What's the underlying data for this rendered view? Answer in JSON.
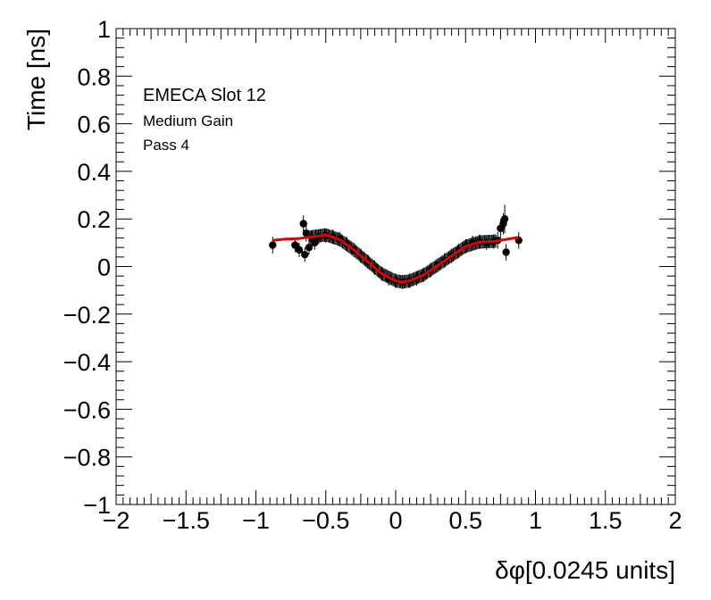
{
  "chart_data": {
    "type": "scatter",
    "title": "",
    "xlabel": "δφ[0.0245 units]",
    "ylabel": "Time [ns]",
    "xlim": [
      -2,
      2
    ],
    "ylim": [
      -1,
      1
    ],
    "x_ticks": [
      -2,
      -1.5,
      -1,
      -0.5,
      0,
      0.5,
      1,
      1.5,
      2
    ],
    "x_tick_labels": [
      "−2",
      "−1.5",
      "−1",
      "−0.5",
      "0",
      "0.5",
      "1",
      "1.5",
      "2"
    ],
    "y_ticks": [
      -1,
      -0.8,
      -0.6,
      -0.4,
      -0.2,
      0,
      0.2,
      0.4,
      0.6,
      0.8,
      1
    ],
    "y_tick_labels": [
      "−1",
      "−0.8",
      "−0.6",
      "−0.4",
      "−0.2",
      "0",
      "0.2",
      "0.4",
      "0.6",
      "0.8",
      "1"
    ],
    "grid": false,
    "annotations": [
      "EMECA Slot 12",
      "Medium Gain",
      "Pass 4"
    ],
    "series": [
      {
        "kind": "points_with_error_bars",
        "color": "#000000",
        "points": [
          {
            "x": -0.88,
            "y": 0.09,
            "err": 0.035
          },
          {
            "x": -0.72,
            "y": 0.09,
            "err": 0.03
          },
          {
            "x": -0.69,
            "y": 0.07,
            "err": 0.03
          },
          {
            "x": -0.66,
            "y": 0.18,
            "err": 0.035
          },
          {
            "x": -0.65,
            "y": 0.05,
            "err": 0.03
          },
          {
            "x": -0.64,
            "y": 0.14,
            "err": 0.035
          },
          {
            "x": -0.62,
            "y": 0.08,
            "err": 0.03
          },
          {
            "x": -0.6,
            "y": 0.12,
            "err": 0.03
          },
          {
            "x": -0.58,
            "y": 0.1,
            "err": 0.03
          },
          {
            "x": -0.55,
            "y": 0.125,
            "err": 0.03
          },
          {
            "x": -0.5,
            "y": 0.13,
            "err": 0.03
          },
          {
            "x": -0.45,
            "y": 0.125,
            "err": 0.03
          },
          {
            "x": -0.4,
            "y": 0.115,
            "err": 0.03
          },
          {
            "x": -0.35,
            "y": 0.095,
            "err": 0.03
          },
          {
            "x": -0.3,
            "y": 0.07,
            "err": 0.03
          },
          {
            "x": -0.25,
            "y": 0.045,
            "err": 0.03
          },
          {
            "x": -0.2,
            "y": 0.02,
            "err": 0.03
          },
          {
            "x": -0.15,
            "y": -0.005,
            "err": 0.03
          },
          {
            "x": -0.1,
            "y": -0.03,
            "err": 0.03
          },
          {
            "x": -0.05,
            "y": -0.05,
            "err": 0.03
          },
          {
            "x": 0.0,
            "y": -0.06,
            "err": 0.03
          },
          {
            "x": 0.05,
            "y": -0.065,
            "err": 0.03
          },
          {
            "x": 0.1,
            "y": -0.06,
            "err": 0.03
          },
          {
            "x": 0.15,
            "y": -0.05,
            "err": 0.03
          },
          {
            "x": 0.2,
            "y": -0.035,
            "err": 0.03
          },
          {
            "x": 0.25,
            "y": -0.015,
            "err": 0.03
          },
          {
            "x": 0.3,
            "y": 0.005,
            "err": 0.03
          },
          {
            "x": 0.35,
            "y": 0.025,
            "err": 0.03
          },
          {
            "x": 0.4,
            "y": 0.045,
            "err": 0.03
          },
          {
            "x": 0.45,
            "y": 0.065,
            "err": 0.03
          },
          {
            "x": 0.5,
            "y": 0.085,
            "err": 0.03
          },
          {
            "x": 0.55,
            "y": 0.1,
            "err": 0.03
          },
          {
            "x": 0.6,
            "y": 0.105,
            "err": 0.03
          },
          {
            "x": 0.65,
            "y": 0.1,
            "err": 0.03
          },
          {
            "x": 0.7,
            "y": 0.105,
            "err": 0.03
          },
          {
            "x": 0.73,
            "y": 0.11,
            "err": 0.035
          },
          {
            "x": 0.75,
            "y": 0.16,
            "err": 0.04
          },
          {
            "x": 0.77,
            "y": 0.18,
            "err": 0.045
          },
          {
            "x": 0.78,
            "y": 0.2,
            "err": 0.06
          },
          {
            "x": 0.79,
            "y": 0.06,
            "err": 0.035
          },
          {
            "x": 0.88,
            "y": 0.11,
            "err": 0.035
          }
        ]
      },
      {
        "kind": "fit_line",
        "color": "#e00000",
        "x": [
          -0.88,
          -0.8,
          -0.7,
          -0.6,
          -0.5,
          -0.4,
          -0.3,
          -0.2,
          -0.1,
          0.0,
          0.05,
          0.1,
          0.2,
          0.3,
          0.4,
          0.5,
          0.6,
          0.7,
          0.8,
          0.88
        ],
        "y": [
          0.11,
          0.115,
          0.117,
          0.125,
          0.133,
          0.113,
          0.07,
          0.02,
          -0.03,
          -0.06,
          -0.065,
          -0.06,
          -0.035,
          0.005,
          0.045,
          0.085,
          0.103,
          0.106,
          0.115,
          0.123
        ]
      }
    ]
  }
}
